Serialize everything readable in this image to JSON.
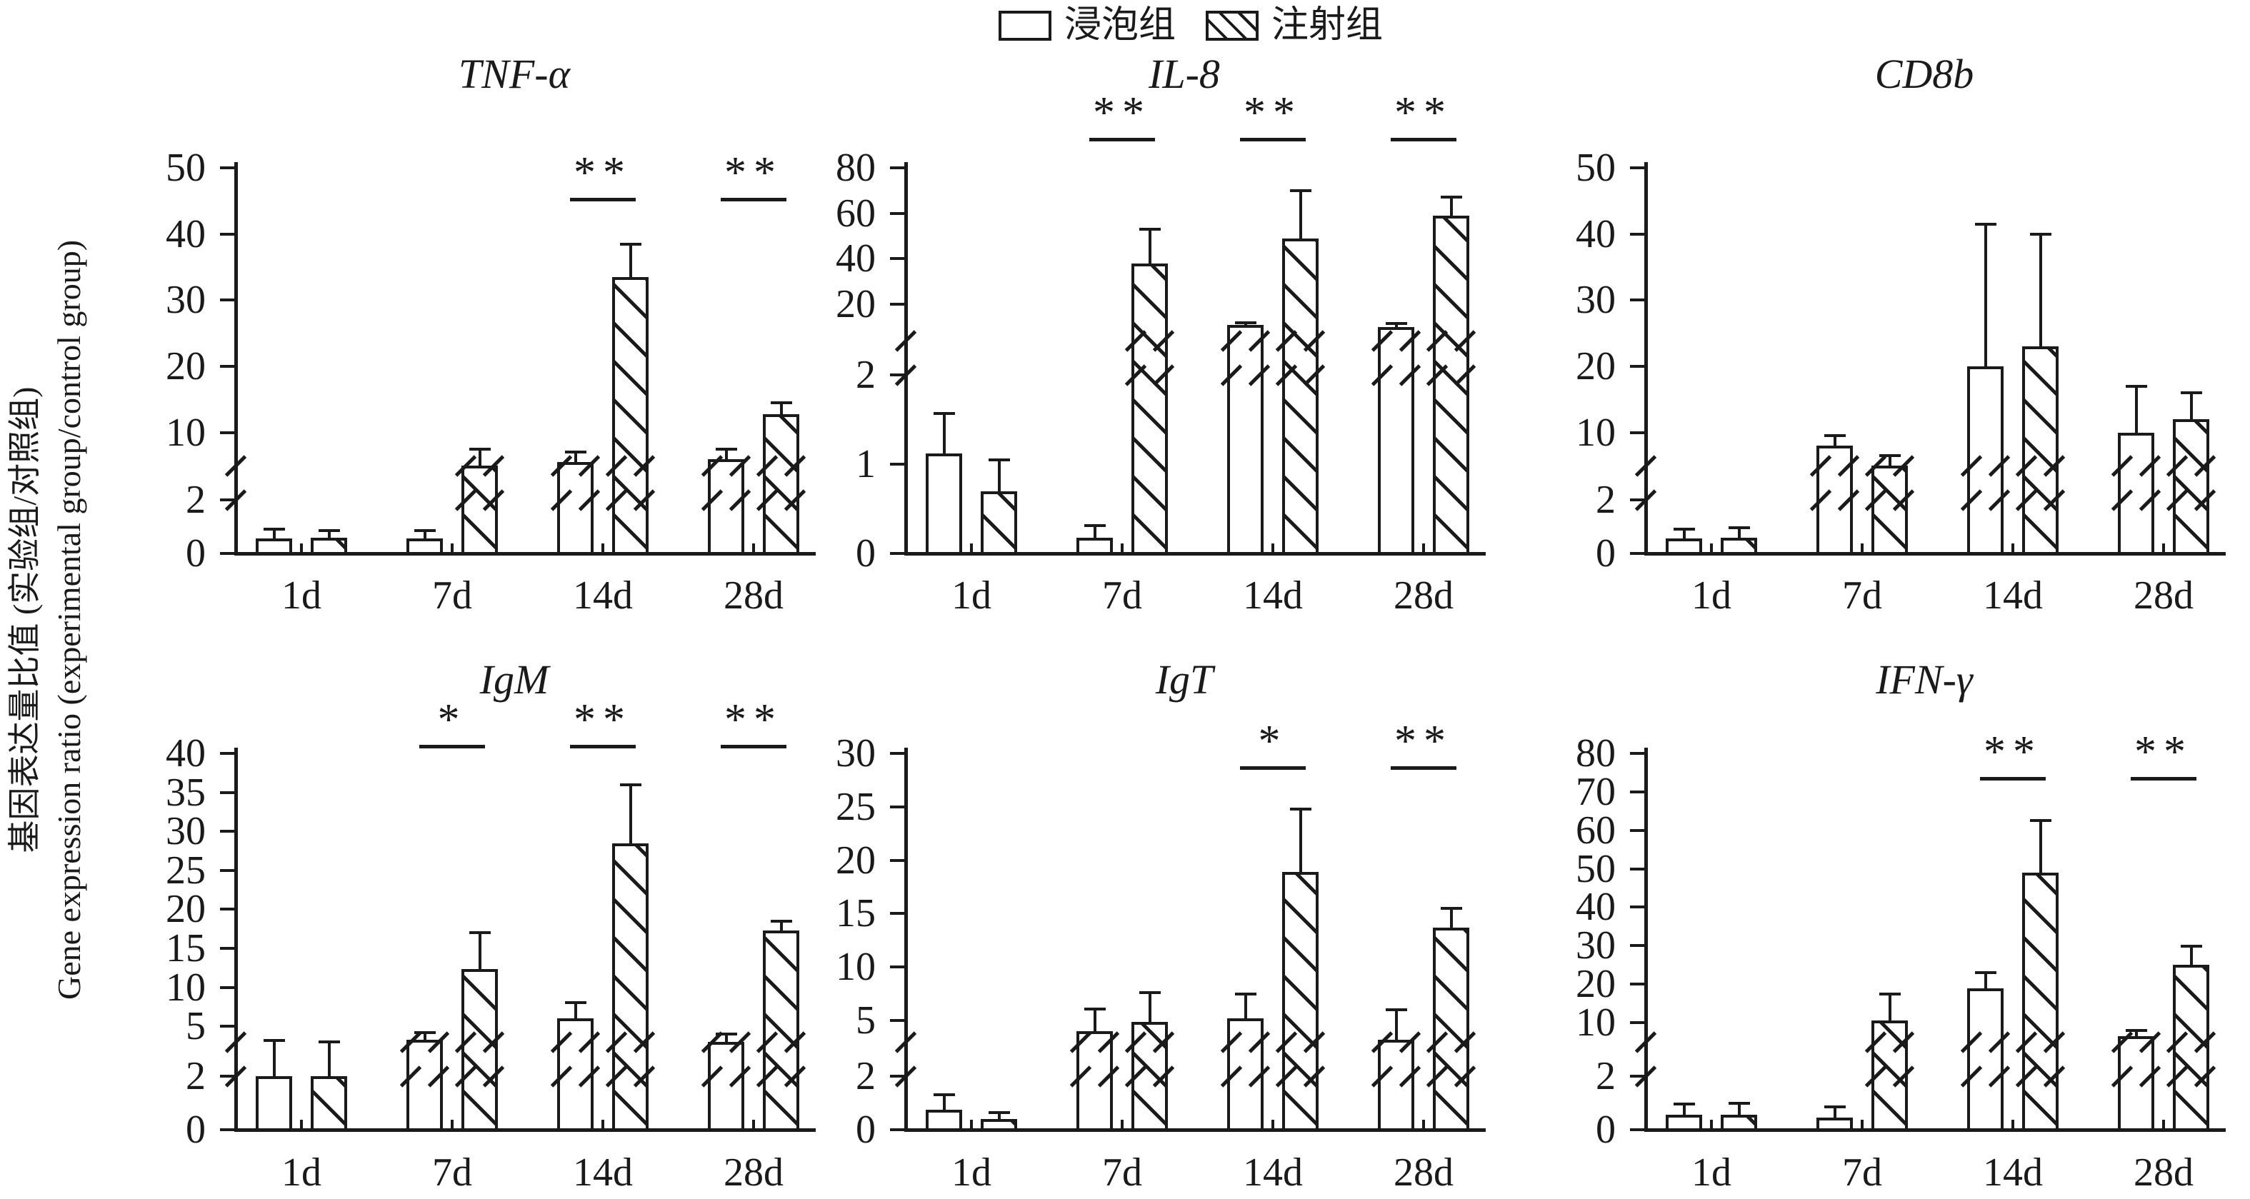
{
  "figure": {
    "background": "#ffffff",
    "ink_color": "#1a1a1a",
    "grid": "off",
    "panels_layout": "2 rows x 3 columns",
    "bar_styles": {
      "immersion": "open white bar",
      "injection": "diagonal-hatched bar"
    }
  },
  "legend": {
    "items": [
      {
        "label": "浸泡组",
        "style": "open"
      },
      {
        "label": "注射组",
        "style": "hatched"
      }
    ]
  },
  "y_axis_label": {
    "zh": "基因表达量比值 (实验组/对照组)",
    "en": "Gene expression ratio (experimental group/control group)"
  },
  "chart_data": [
    {
      "type": "bar",
      "title": "TNF-α",
      "row": 0,
      "col": 0,
      "categories": [
        "1d",
        "7d",
        "14d",
        "28d"
      ],
      "lower_ticks": [
        0,
        2
      ],
      "upper_ticks": [
        10,
        20,
        30,
        40,
        50
      ],
      "axis_break": {
        "lower_max": 2,
        "upper_resume": 5
      },
      "ylim": [
        0,
        50
      ],
      "series": [
        {
          "name": "浸泡组",
          "values": [
            0.55,
            0.55,
            5.5,
            6.0
          ],
          "errors": [
            0.35,
            0.3,
            1.5,
            1.5
          ]
        },
        {
          "name": "注射组",
          "values": [
            0.6,
            5.0,
            33.5,
            12.8
          ],
          "errors": [
            0.25,
            2.5,
            5.0,
            1.7
          ]
        }
      ],
      "significance": [
        "",
        "",
        "**",
        "**"
      ]
    },
    {
      "type": "bar",
      "title": "IL-8",
      "row": 0,
      "col": 1,
      "categories": [
        "1d",
        "7d",
        "14d",
        "28d"
      ],
      "lower_ticks": [
        0,
        1,
        2
      ],
      "upper_ticks": [
        20,
        40,
        60,
        80
      ],
      "axis_break": {
        "lower_max": 2,
        "upper_resume": 4
      },
      "ylim": [
        0,
        80
      ],
      "series": [
        {
          "name": "浸泡组",
          "values": [
            1.12,
            0.18,
            11.0,
            10.0
          ],
          "errors": [
            0.45,
            0.13,
            1.0,
            1.5
          ]
        },
        {
          "name": "注射组",
          "values": [
            0.7,
            38.0,
            49.0,
            59.0
          ],
          "errors": [
            0.35,
            15.0,
            21.0,
            8.0
          ]
        }
      ],
      "significance": [
        "",
        "**",
        "**",
        "**"
      ]
    },
    {
      "type": "bar",
      "title": "CD8b",
      "row": 0,
      "col": 2,
      "categories": [
        "1d",
        "7d",
        "14d",
        "28d"
      ],
      "lower_ticks": [
        0,
        2
      ],
      "upper_ticks": [
        10,
        20,
        30,
        40,
        50
      ],
      "axis_break": {
        "lower_max": 2,
        "upper_resume": 5
      },
      "ylim": [
        0,
        50
      ],
      "series": [
        {
          "name": "浸泡组",
          "values": [
            0.55,
            8.0,
            20.0,
            10.0
          ],
          "errors": [
            0.35,
            1.5,
            21.5,
            7.0
          ]
        },
        {
          "name": "注射组",
          "values": [
            0.6,
            5.0,
            23.0,
            12.0
          ],
          "errors": [
            0.35,
            1.5,
            17.0,
            4.0
          ]
        }
      ],
      "significance": [
        "",
        "",
        "",
        ""
      ]
    },
    {
      "type": "bar",
      "title": "IgM",
      "row": 1,
      "col": 0,
      "categories": [
        "1d",
        "7d",
        "14d",
        "28d"
      ],
      "lower_ticks": [
        0,
        2
      ],
      "upper_ticks": [
        5,
        10,
        15,
        20,
        25,
        30,
        35,
        40
      ],
      "axis_break": {
        "lower_max": 2,
        "upper_resume": 3
      },
      "ylim": [
        0,
        40
      ],
      "series": [
        {
          "name": "浸泡组",
          "values": [
            2.0,
            3.3,
            6.0,
            3.0
          ],
          "errors": [
            1.2,
            0.9,
            2.0,
            1.0
          ]
        },
        {
          "name": "注射组",
          "values": [
            2.0,
            12.3,
            28.5,
            17.3
          ],
          "errors": [
            1.0,
            4.7,
            7.5,
            1.2
          ]
        }
      ],
      "significance": [
        "",
        "*",
        "**",
        "**"
      ]
    },
    {
      "type": "bar",
      "title": "IgT",
      "row": 1,
      "col": 1,
      "categories": [
        "1d",
        "7d",
        "14d",
        "28d"
      ],
      "lower_ticks": [
        0,
        2
      ],
      "upper_ticks": [
        5,
        10,
        15,
        20,
        25,
        30
      ],
      "axis_break": {
        "lower_max": 2,
        "upper_resume": 3
      },
      "ylim": [
        0,
        30
      ],
      "series": [
        {
          "name": "浸泡组",
          "values": [
            0.75,
            4.0,
            5.2,
            3.2
          ],
          "errors": [
            0.55,
            2.1,
            2.3,
            2.8
          ]
        },
        {
          "name": "注射组",
          "values": [
            0.4,
            4.9,
            18.9,
            13.7
          ],
          "errors": [
            0.25,
            2.7,
            5.9,
            1.8
          ]
        }
      ],
      "significance": [
        "",
        "",
        "*",
        "**"
      ]
    },
    {
      "type": "bar",
      "title": "IFN-γ",
      "row": 1,
      "col": 2,
      "categories": [
        "1d",
        "7d",
        "14d",
        "28d"
      ],
      "lower_ticks": [
        0,
        2
      ],
      "upper_ticks": [
        10,
        20,
        30,
        40,
        50,
        60,
        70,
        80
      ],
      "axis_break": {
        "lower_max": 2,
        "upper_resume": 5
      },
      "ylim": [
        0,
        80
      ],
      "series": [
        {
          "name": "浸泡组",
          "values": [
            0.55,
            0.45,
            19.0,
            6.5
          ],
          "errors": [
            0.4,
            0.4,
            4.0,
            1.5
          ]
        },
        {
          "name": "注射组",
          "values": [
            0.55,
            10.5,
            49.0,
            25.0
          ],
          "errors": [
            0.45,
            7.0,
            13.5,
            4.8
          ]
        }
      ],
      "significance": [
        "",
        "",
        "**",
        "**"
      ]
    }
  ]
}
